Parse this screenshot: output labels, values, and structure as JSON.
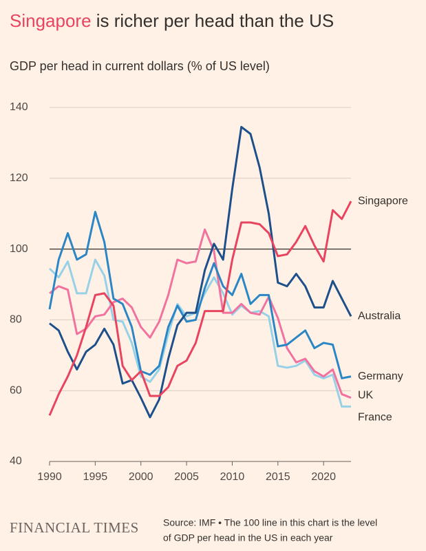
{
  "chart_data": {
    "type": "line",
    "title_highlight": "Singapore",
    "title": " is richer per head than the US",
    "title_highlight_color": "#e8445f",
    "subtitle": "GDP per head in current dollars (% of US level)",
    "reference_line": 100,
    "x": [
      1990,
      1991,
      1992,
      1993,
      1994,
      1995,
      1996,
      1997,
      1998,
      1999,
      2000,
      2001,
      2002,
      2003,
      2004,
      2005,
      2006,
      2007,
      2008,
      2009,
      2010,
      2011,
      2012,
      2013,
      2014,
      2015,
      2016,
      2017,
      2018,
      2019,
      2020,
      2021,
      2022,
      2023
    ],
    "series": [
      {
        "name": "Singapore",
        "color": "#e8445f",
        "values": [
          53,
          59,
          64,
          70,
          78,
          87,
          87.5,
          84,
          67,
          63,
          65.5,
          58.5,
          58.5,
          61,
          67,
          68.5,
          73.5,
          82.5,
          82.5,
          82.5,
          97,
          107.5,
          107.5,
          107,
          104.5,
          98,
          98.5,
          102,
          106.5,
          101,
          96.5,
          111,
          108.5,
          113.5
        ]
      },
      {
        "name": "Australia",
        "color": "#1d4f8a",
        "values": [
          79,
          77,
          71,
          66,
          71,
          73,
          77.5,
          73,
          62,
          63,
          58,
          52.5,
          57.5,
          69,
          78.5,
          82,
          82,
          94,
          101.5,
          97,
          117,
          134.5,
          132.5,
          123,
          110,
          90.5,
          89.5,
          93,
          89.5,
          83.5,
          83.5,
          91,
          86,
          81
        ]
      },
      {
        "name": "Germany",
        "color": "#2b86c5",
        "values": [
          83,
          97,
          104.5,
          97,
          98.5,
          110.5,
          102,
          86,
          84.5,
          78,
          65.5,
          64.5,
          67,
          78,
          84,
          79.5,
          80,
          89,
          96,
          89.5,
          87,
          93,
          84.5,
          87,
          87,
          72.5,
          73,
          75,
          77,
          72,
          73.5,
          73,
          63.5,
          64
        ]
      },
      {
        "name": "UK",
        "color": "#f2729f",
        "values": [
          87.5,
          89.5,
          88.5,
          76,
          77.5,
          81,
          81.5,
          85,
          86,
          83.5,
          78,
          75,
          79.5,
          87,
          97,
          96,
          96.5,
          105.5,
          99.5,
          82,
          82,
          84.5,
          82,
          81.5,
          86.5,
          80.5,
          72,
          68,
          69,
          65.5,
          64,
          66,
          59,
          58
        ]
      },
      {
        "name": "France",
        "color": "#96d1e8",
        "values": [
          94.5,
          92,
          96.5,
          87.5,
          87.5,
          97,
          92.5,
          80,
          79.5,
          73.5,
          64,
          62.5,
          66,
          76,
          84.5,
          81,
          82,
          87.5,
          92,
          87.5,
          81.5,
          84,
          82,
          82.5,
          81,
          67,
          66.5,
          67,
          68.5,
          64.5,
          63.5,
          64.5,
          55.5,
          55.5
        ]
      }
    ],
    "xlim": [
      1990,
      2023
    ],
    "xticks": [
      1990,
      1995,
      2000,
      2005,
      2010,
      2015,
      2020
    ],
    "ylim": [
      40,
      140
    ],
    "yticks": [
      40,
      60,
      80,
      100,
      120,
      140
    ],
    "grid": true,
    "logo": "FINANCIAL TIMES",
    "source": [
      "Source: IMF • The 100 line in this chart is the level",
      "of GDP per head in the US in each year"
    ]
  }
}
